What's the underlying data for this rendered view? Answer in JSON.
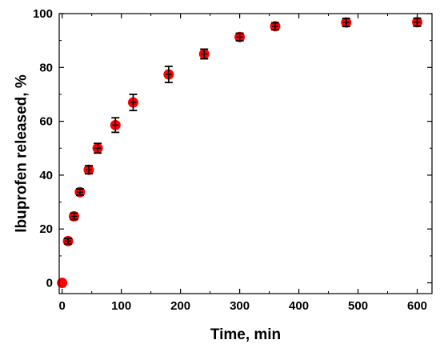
{
  "chart_data": {
    "type": "scatter",
    "title": "",
    "xlabel": "Time, min",
    "ylabel": "Ibuprofen released, %",
    "xlim": [
      -5,
      625
    ],
    "ylim": [
      -4,
      100
    ],
    "xticks": [
      0,
      100,
      200,
      300,
      400,
      500,
      600
    ],
    "yticks": [
      0,
      20,
      40,
      60,
      80,
      100
    ],
    "grid": false,
    "legend": "none",
    "marker_color": "#ff0000",
    "errorbar_color": "#000000",
    "series": [
      {
        "x": [
          0,
          10,
          20,
          30,
          45,
          60,
          90,
          120,
          180,
          240,
          300,
          360,
          480,
          600
        ],
        "y": [
          0,
          15.5,
          24.7,
          33.7,
          42,
          50,
          58.6,
          67,
          77.4,
          85,
          91.3,
          95.3,
          96.7,
          96.8
        ],
        "err": [
          0,
          1.0,
          1.2,
          1.2,
          1.5,
          1.8,
          2.7,
          3.0,
          3.0,
          1.8,
          1.4,
          1.3,
          1.5,
          1.5
        ]
      }
    ]
  }
}
